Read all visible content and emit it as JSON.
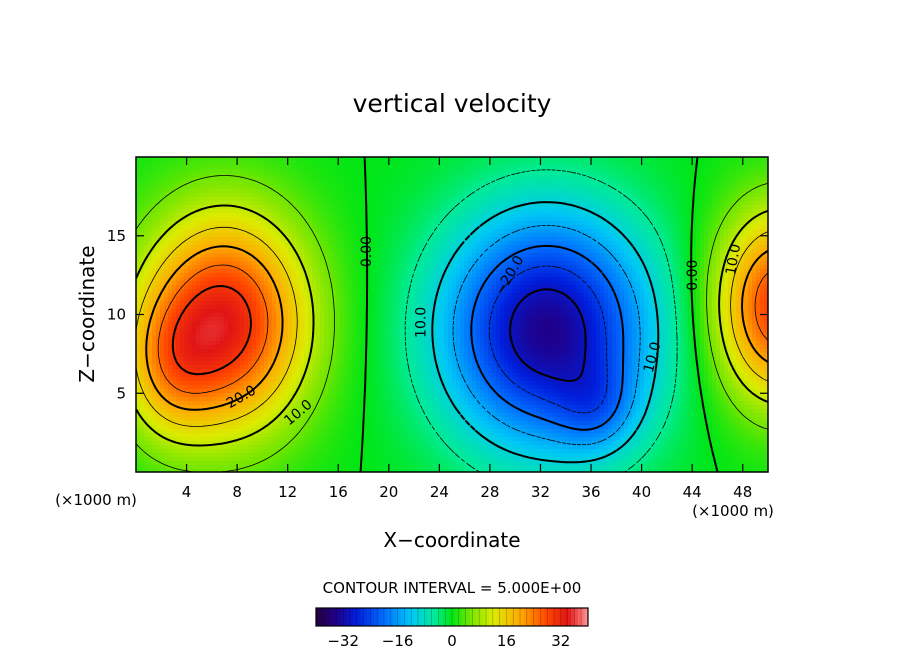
{
  "chart_data": {
    "type": "heatmap",
    "title": "vertical velocity",
    "xlabel": "X−coordinate",
    "ylabel": "Z−coordinate",
    "x_unit_left": "(×1000 m)",
    "x_unit_right": "(×1000 m)",
    "xlim": [
      0,
      50
    ],
    "ylim": [
      0,
      20
    ],
    "x_ticks": [
      "4",
      "8",
      "12",
      "16",
      "20",
      "24",
      "28",
      "32",
      "36",
      "40",
      "44",
      "48"
    ],
    "x_tick_values": [
      4,
      8,
      12,
      16,
      20,
      24,
      28,
      32,
      36,
      40,
      44,
      48
    ],
    "y_ticks": [
      "5",
      "10",
      "15"
    ],
    "y_tick_values": [
      5,
      10,
      15
    ],
    "contour_interval_label": "CONTOUR INTERVAL = 5.000E+00",
    "contour_interval": 5.0,
    "colorbar": {
      "range": [
        -40,
        40
      ],
      "ticks": [
        "−32",
        "−16",
        "0",
        "16",
        "32"
      ],
      "tick_values": [
        -32,
        -16,
        0,
        16,
        32
      ]
    },
    "contour_labels": [
      {
        "text": "0.00",
        "x": 18.2,
        "z": 14.0,
        "rotate": -90
      },
      {
        "text": "0.00",
        "x": 44.0,
        "z": 12.5,
        "rotate": -90
      },
      {
        "text": "10.0",
        "x": 22.5,
        "z": 9.5,
        "rotate": -90
      },
      {
        "text": "−20.0",
        "x": 29.5,
        "z": 12.5,
        "rotate": -60
      },
      {
        "text": "10.0",
        "x": 40.8,
        "z": 7.3,
        "rotate": -75
      },
      {
        "text": "10.0",
        "x": 47.2,
        "z": 13.5,
        "rotate": -80
      },
      {
        "text": "20.0",
        "x": 8.3,
        "z": 4.8,
        "rotate": -30
      },
      {
        "text": "10.0",
        "x": 12.8,
        "z": 3.8,
        "rotate": -40
      }
    ],
    "features": [
      {
        "kind": "updraft",
        "x": 7.5,
        "z": 9.5,
        "peak": 32
      },
      {
        "kind": "downdraft",
        "x": 33.5,
        "z": 8.5,
        "peak": -32
      },
      {
        "kind": "updraft",
        "x": 50.0,
        "z": 10.5,
        "peak": 25
      }
    ],
    "grid": false
  }
}
